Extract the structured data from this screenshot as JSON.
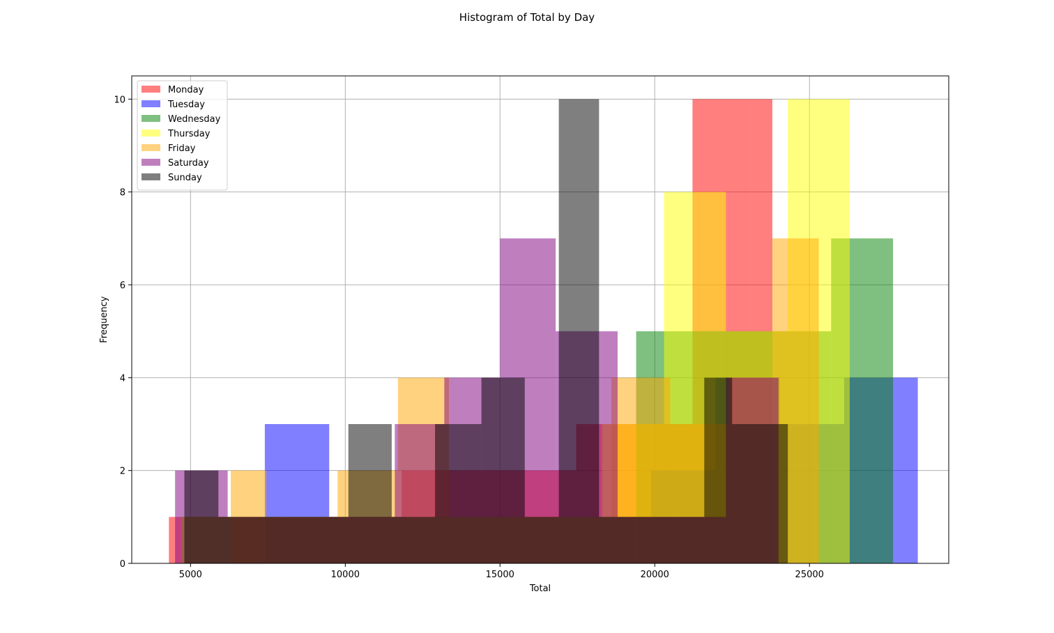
{
  "chart_data": {
    "type": "bar",
    "title": "Histogram of Total by Day",
    "xlabel": "Total",
    "ylabel": "Frequency",
    "xlim": [
      3100,
      29500
    ],
    "ylim": [
      0,
      10.5
    ],
    "grid": true,
    "legend_position": "upper-left",
    "x_ticks": [
      5000,
      10000,
      15000,
      20000,
      25000
    ],
    "y_ticks": [
      0,
      2,
      4,
      6,
      8,
      10
    ],
    "bar_opacity": 0.5,
    "series": [
      {
        "name": "Monday",
        "color": "#ff0000",
        "bins": [
          {
            "start": 4300,
            "end": 6180,
            "count": 1
          },
          {
            "start": 6180,
            "end": 8060,
            "count": 1
          },
          {
            "start": 8060,
            "end": 9940,
            "count": 1
          },
          {
            "start": 9940,
            "end": 11820,
            "count": 1
          },
          {
            "start": 11820,
            "end": 13700,
            "count": 2
          },
          {
            "start": 13700,
            "end": 15580,
            "count": 2
          },
          {
            "start": 15580,
            "end": 17460,
            "count": 2
          },
          {
            "start": 17460,
            "end": 19340,
            "count": 3
          },
          {
            "start": 19340,
            "end": 21220,
            "count": 3
          },
          {
            "start": 21220,
            "end": 23100,
            "count": 10
          },
          {
            "start": 23100,
            "end": 23800,
            "count": 10
          }
        ]
      },
      {
        "name": "Tuesday",
        "color": "#0000ff",
        "bins": [
          {
            "start": 7400,
            "end": 9480,
            "count": 3
          },
          {
            "start": 9480,
            "end": 11560,
            "count": 1
          },
          {
            "start": 11560,
            "end": 13640,
            "count": 1
          },
          {
            "start": 13640,
            "end": 15720,
            "count": 1
          },
          {
            "start": 15720,
            "end": 17800,
            "count": 1
          },
          {
            "start": 17800,
            "end": 19880,
            "count": 1
          },
          {
            "start": 19880,
            "end": 21960,
            "count": 2
          },
          {
            "start": 21960,
            "end": 24040,
            "count": 4
          },
          {
            "start": 24040,
            "end": 26120,
            "count": 3
          },
          {
            "start": 26120,
            "end": 28500,
            "count": 4
          }
        ]
      },
      {
        "name": "Wednesday",
        "color": "#008000",
        "bins": [
          {
            "start": 4700,
            "end": 6800,
            "count": 1
          },
          {
            "start": 6800,
            "end": 8900,
            "count": 1
          },
          {
            "start": 8900,
            "end": 11000,
            "count": 1
          },
          {
            "start": 11000,
            "end": 13100,
            "count": 1
          },
          {
            "start": 13100,
            "end": 15200,
            "count": 1
          },
          {
            "start": 15200,
            "end": 17300,
            "count": 1
          },
          {
            "start": 17300,
            "end": 19400,
            "count": 1
          },
          {
            "start": 19400,
            "end": 21500,
            "count": 5
          },
          {
            "start": 21500,
            "end": 23600,
            "count": 5
          },
          {
            "start": 23600,
            "end": 25700,
            "count": 5
          },
          {
            "start": 25700,
            "end": 27700,
            "count": 7
          }
        ]
      },
      {
        "name": "Thursday",
        "color": "#ffff00",
        "bins": [
          {
            "start": 4700,
            "end": 6700,
            "count": 1
          },
          {
            "start": 6700,
            "end": 8600,
            "count": 1
          },
          {
            "start": 8600,
            "end": 10600,
            "count": 1
          },
          {
            "start": 10600,
            "end": 12500,
            "count": 1
          },
          {
            "start": 12500,
            "end": 14400,
            "count": 1
          },
          {
            "start": 14400,
            "end": 16300,
            "count": 1
          },
          {
            "start": 16300,
            "end": 18300,
            "count": 1
          },
          {
            "start": 18300,
            "end": 20300,
            "count": 3
          },
          {
            "start": 20300,
            "end": 22300,
            "count": 8
          },
          {
            "start": 22300,
            "end": 24300,
            "count": 5
          },
          {
            "start": 24300,
            "end": 26300,
            "count": 10
          }
        ]
      },
      {
        "name": "Friday",
        "color": "#ffa500",
        "bins": [
          {
            "start": 6300,
            "end": 7450,
            "count": 2
          },
          {
            "start": 7450,
            "end": 8600,
            "count": 1
          },
          {
            "start": 8600,
            "end": 9750,
            "count": 1
          },
          {
            "start": 9750,
            "end": 11700,
            "count": 2
          },
          {
            "start": 11700,
            "end": 13350,
            "count": 4
          },
          {
            "start": 13350,
            "end": 15200,
            "count": 1
          },
          {
            "start": 15200,
            "end": 17000,
            "count": 1
          },
          {
            "start": 17000,
            "end": 18600,
            "count": 1
          },
          {
            "start": 18600,
            "end": 20500,
            "count": 4
          },
          {
            "start": 20500,
            "end": 22400,
            "count": 3
          },
          {
            "start": 22400,
            "end": 23800,
            "count": 4
          },
          {
            "start": 23800,
            "end": 25300,
            "count": 7
          }
        ]
      },
      {
        "name": "Saturday",
        "color": "#800080",
        "bins": [
          {
            "start": 4500,
            "end": 6200,
            "count": 2
          },
          {
            "start": 6200,
            "end": 7900,
            "count": 1
          },
          {
            "start": 7900,
            "end": 9800,
            "count": 1
          },
          {
            "start": 9800,
            "end": 11600,
            "count": 1
          },
          {
            "start": 11600,
            "end": 13200,
            "count": 3
          },
          {
            "start": 13200,
            "end": 15000,
            "count": 4
          },
          {
            "start": 15000,
            "end": 16800,
            "count": 7
          },
          {
            "start": 16800,
            "end": 18800,
            "count": 5
          },
          {
            "start": 18800,
            "end": 20600,
            "count": 1
          },
          {
            "start": 20600,
            "end": 22300,
            "count": 1
          },
          {
            "start": 22300,
            "end": 24000,
            "count": 4
          }
        ]
      },
      {
        "name": "Sunday",
        "color": "#000000",
        "bins": [
          {
            "start": 4800,
            "end": 5900,
            "count": 2
          },
          {
            "start": 5900,
            "end": 7400,
            "count": 1
          },
          {
            "start": 7400,
            "end": 8600,
            "count": 1
          },
          {
            "start": 8600,
            "end": 10100,
            "count": 1
          },
          {
            "start": 10100,
            "end": 11500,
            "count": 3
          },
          {
            "start": 11500,
            "end": 12900,
            "count": 1
          },
          {
            "start": 12900,
            "end": 14400,
            "count": 3
          },
          {
            "start": 14400,
            "end": 15800,
            "count": 4
          },
          {
            "start": 15800,
            "end": 16900,
            "count": 1
          },
          {
            "start": 16900,
            "end": 18200,
            "count": 10
          },
          {
            "start": 18200,
            "end": 19400,
            "count": 1
          },
          {
            "start": 19400,
            "end": 20500,
            "count": 1
          },
          {
            "start": 20500,
            "end": 21600,
            "count": 1
          },
          {
            "start": 21600,
            "end": 22500,
            "count": 4
          },
          {
            "start": 22500,
            "end": 24300,
            "count": 3
          }
        ]
      }
    ]
  }
}
